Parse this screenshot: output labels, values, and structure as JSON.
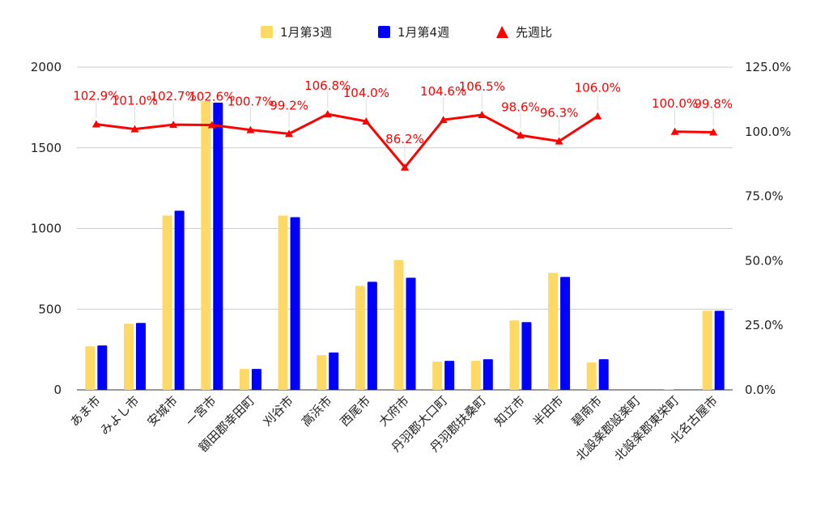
{
  "chart_data": {
    "type": "bar",
    "title": "",
    "categories": [
      "あま市",
      "みよし市",
      "安城市",
      "一宮市",
      "額田郡幸田町",
      "刈谷市",
      "高浜市",
      "西尾市",
      "大府市",
      "丹羽郡大口町",
      "丹羽郡扶桑町",
      "知立市",
      "半田市",
      "碧南市",
      "北設楽郡設楽町",
      "北設楽郡東栄町",
      "北名古屋市"
    ],
    "series": [
      {
        "name": "1月第3週",
        "type": "bar",
        "axis": "left",
        "color": "#FFD966",
        "values": [
          270,
          410,
          1080,
          1790,
          130,
          1080,
          215,
          645,
          805,
          175,
          180,
          430,
          725,
          170,
          0,
          5,
          490
        ]
      },
      {
        "name": "1月第4週",
        "type": "bar",
        "axis": "left",
        "color": "#0000FF",
        "values": [
          275,
          415,
          1110,
          1780,
          130,
          1070,
          232,
          670,
          695,
          180,
          190,
          420,
          700,
          190,
          0,
          2,
          490
        ]
      },
      {
        "name": "先週比",
        "type": "line",
        "axis": "right",
        "color": "#FF0000",
        "values": [
          102.9,
          101.0,
          102.7,
          102.6,
          100.7,
          99.2,
          106.8,
          104.0,
          86.2,
          104.6,
          106.5,
          98.6,
          96.3,
          106.0,
          null,
          100.0,
          99.8
        ],
        "labels": [
          "102.9%",
          "101.0%",
          "102.7%",
          "102.6%",
          "100.7%",
          "99.2%",
          "106.8%",
          "104.0%",
          "86.2%",
          "104.6%",
          "106.5%",
          "98.6%",
          "96.3%",
          "106.0%",
          "",
          "100.0%",
          "99.8%"
        ]
      }
    ],
    "y_left": {
      "min": 0,
      "max": 2000,
      "ticks": [
        "0",
        "500",
        "1000",
        "1500",
        "2000"
      ]
    },
    "y_right": {
      "min": 0,
      "max": 125,
      "ticks": [
        "0.0%",
        "25.0%",
        "50.0%",
        "75.0%",
        "100.0%",
        "125.0%"
      ]
    },
    "grid": true,
    "legend_position": "top"
  }
}
